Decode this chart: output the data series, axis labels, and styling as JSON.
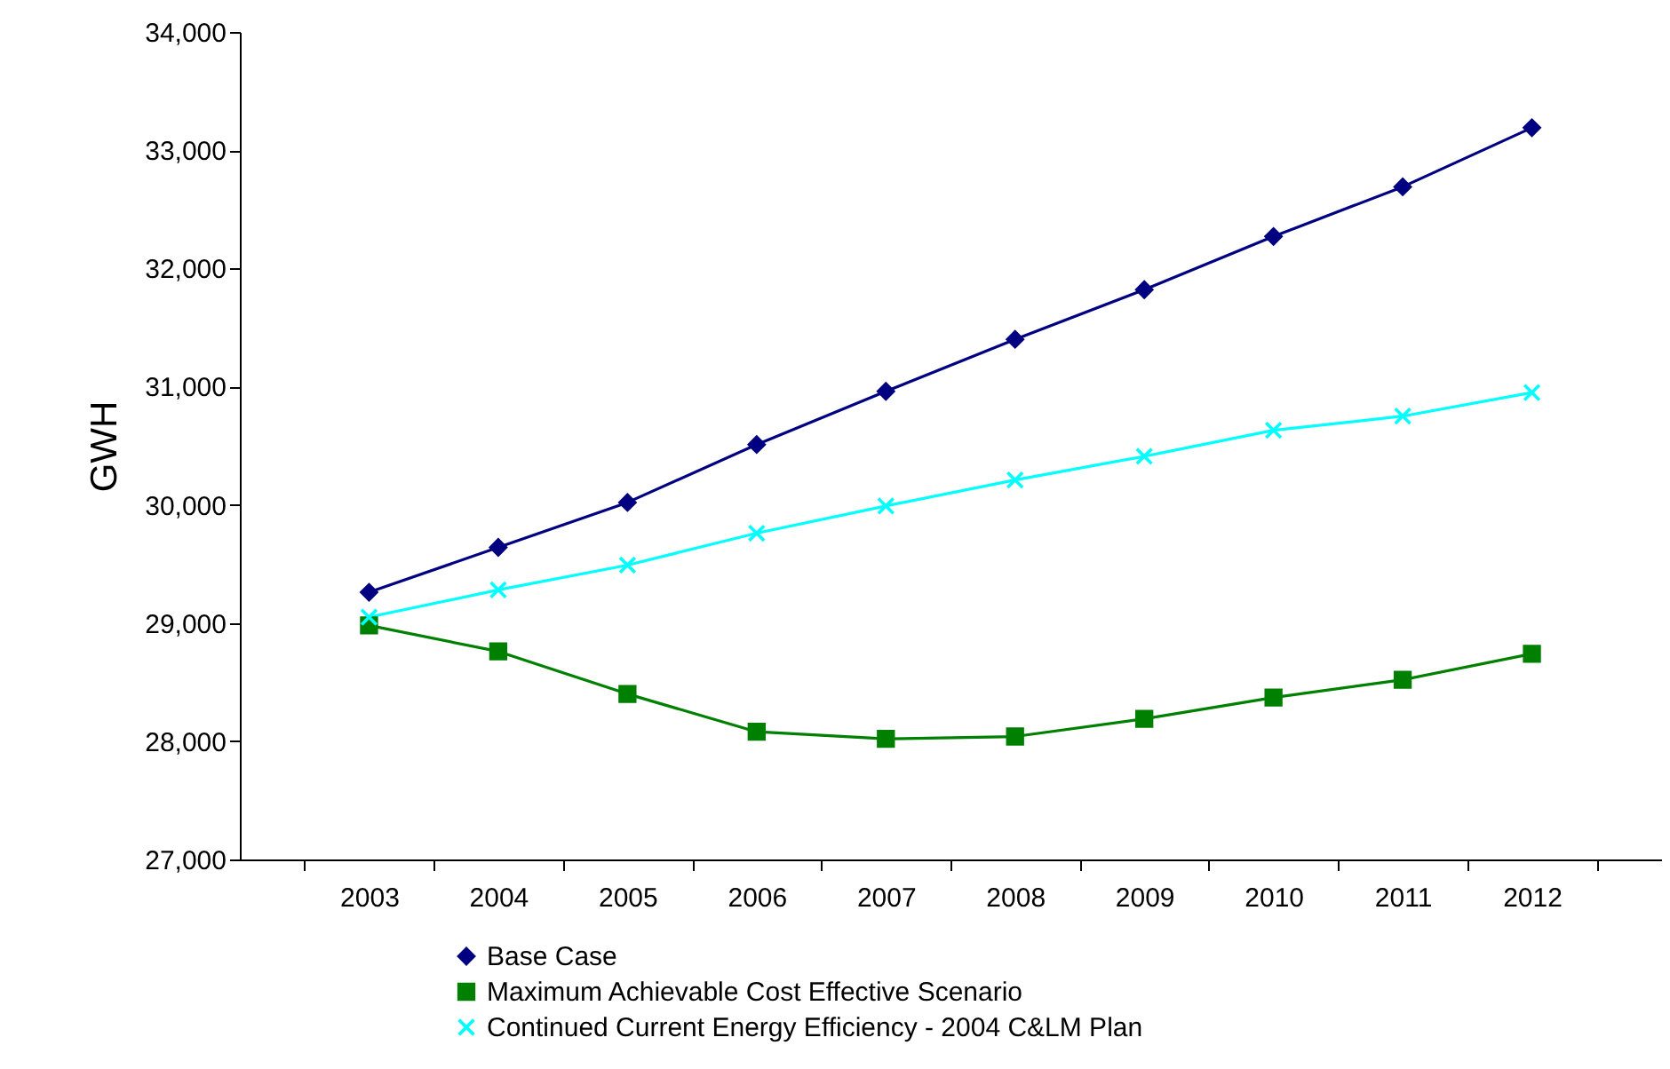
{
  "chart_data": {
    "type": "line",
    "ylabel": "GWH",
    "categories": [
      "2003",
      "2004",
      "2005",
      "2006",
      "2007",
      "2008",
      "2009",
      "2010",
      "2011",
      "2012"
    ],
    "series": [
      {
        "name": "Base Case",
        "color": "#000080",
        "marker": "diamond",
        "values": [
          29260,
          29640,
          30020,
          30510,
          30960,
          31400,
          31820,
          32270,
          32690,
          33190
        ]
      },
      {
        "name": "Maximum Achievable Cost Effective Scenario",
        "color": "#008000",
        "marker": "square",
        "values": [
          28980,
          28760,
          28400,
          28080,
          28020,
          28040,
          28190,
          28370,
          28520,
          28740
        ]
      },
      {
        "name": "Continued Current Energy Efficiency - 2004 C&LM Plan",
        "color": "#00ffff",
        "marker": "cross",
        "values": [
          29050,
          29280,
          29490,
          29760,
          29990,
          30210,
          30410,
          30630,
          30750,
          30950
        ]
      }
    ],
    "ylim": [
      27000,
      34000
    ],
    "yticks": [
      {
        "value": 27000,
        "label": "27,000"
      },
      {
        "value": 28000,
        "label": "28,000"
      },
      {
        "value": 29000,
        "label": "29,000"
      },
      {
        "value": 30000,
        "label": "30,000"
      },
      {
        "value": 31000,
        "label": "31,000"
      },
      {
        "value": 32000,
        "label": "32,000"
      },
      {
        "value": 33000,
        "label": "33,000"
      },
      {
        "value": 34000,
        "label": "34,000"
      }
    ],
    "grid": false,
    "legend": "bottom"
  }
}
